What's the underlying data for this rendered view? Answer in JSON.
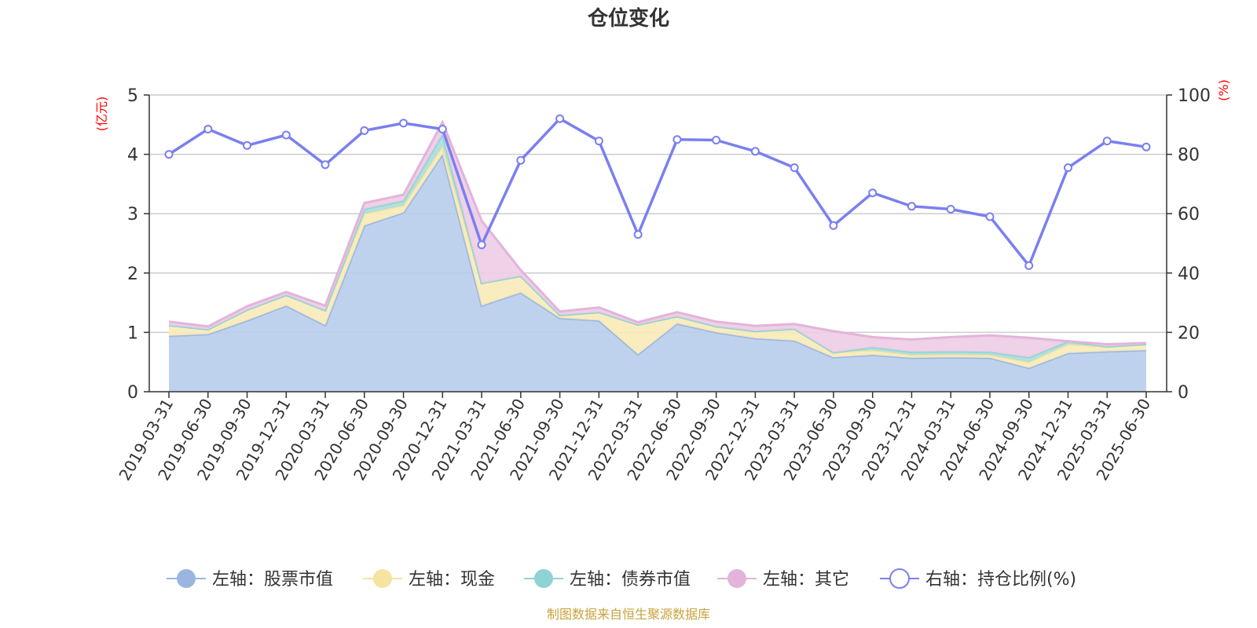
{
  "chart_data": {
    "type": "area",
    "title": "仓位变化",
    "left_axis_unit": "(亿元)",
    "right_axis_unit": "(%)",
    "left_ylim": [
      0,
      5
    ],
    "right_ylim": [
      0,
      100
    ],
    "left_yticks": [
      "0",
      "1",
      "2",
      "3",
      "4",
      "5"
    ],
    "right_yticks": [
      "0",
      "20",
      "40",
      "60",
      "80",
      "100"
    ],
    "grid": true,
    "legend_position": "bottom",
    "categories": [
      "2019-03-31",
      "2019-06-30",
      "2019-09-30",
      "2019-12-31",
      "2020-03-31",
      "2020-06-30",
      "2020-09-30",
      "2020-12-31",
      "2021-03-31",
      "2021-06-30",
      "2021-09-30",
      "2021-12-31",
      "2022-03-31",
      "2022-06-30",
      "2022-09-30",
      "2022-12-31",
      "2023-03-31",
      "2023-06-30",
      "2023-09-30",
      "2023-12-31",
      "2024-03-31",
      "2024-06-30",
      "2024-09-30",
      "2024-12-31",
      "2025-03-31",
      "2025-06-30"
    ],
    "series": [
      {
        "name": "左轴：股票市值",
        "axis": "left",
        "kind": "stacked-area",
        "color": "#9ab6e0",
        "fill": "#b8cdeb",
        "values": [
          0.94,
          0.97,
          1.2,
          1.45,
          1.12,
          2.8,
          3.02,
          4.0,
          1.45,
          1.67,
          1.24,
          1.2,
          0.63,
          1.15,
          1.0,
          0.9,
          0.86,
          0.58,
          0.62,
          0.57,
          0.58,
          0.57,
          0.4,
          0.65,
          0.68,
          0.7
        ]
      },
      {
        "name": "左轴：现金",
        "axis": "left",
        "kind": "stacked-area",
        "color": "#f5e3a0",
        "fill": "#f8ebb8",
        "values": [
          0.18,
          0.08,
          0.18,
          0.18,
          0.25,
          0.2,
          0.12,
          0.14,
          0.38,
          0.28,
          0.05,
          0.14,
          0.5,
          0.12,
          0.1,
          0.12,
          0.2,
          0.08,
          0.08,
          0.05,
          0.05,
          0.05,
          0.1,
          0.15,
          0.08,
          0.1
        ]
      },
      {
        "name": "左轴：债券市值",
        "axis": "left",
        "kind": "stacked-area",
        "color": "#8fd3d3",
        "fill": "#a9dede",
        "values": [
          0,
          0,
          0,
          0,
          0,
          0.08,
          0.08,
          0.2,
          0,
          0,
          0,
          0,
          0,
          0,
          0,
          0,
          0,
          0,
          0.05,
          0.05,
          0.05,
          0.05,
          0.08,
          0.05,
          0,
          0
        ]
      },
      {
        "name": "左轴：其它",
        "axis": "left",
        "kind": "stacked-area",
        "color": "#e3b4d9",
        "fill": "#edcce6",
        "values": [
          0.06,
          0.05,
          0.06,
          0.05,
          0.08,
          0.1,
          0.1,
          0.2,
          1.05,
          0.1,
          0.06,
          0.08,
          0.04,
          0.07,
          0.08,
          0.09,
          0.08,
          0.36,
          0.17,
          0.21,
          0.24,
          0.28,
          0.33,
          0,
          0.04,
          0.02
        ]
      },
      {
        "name": "右轴：持仓比例(%)",
        "axis": "right",
        "kind": "line",
        "color": "#7a7ff0",
        "values": [
          80,
          88.5,
          83,
          86.5,
          76.5,
          88,
          90.5,
          88.5,
          49.5,
          78,
          92,
          84.5,
          53,
          85,
          84.8,
          81,
          75.5,
          56,
          67,
          62.5,
          61.5,
          59,
          42.5,
          75.5,
          84.5,
          82.5
        ]
      }
    ]
  },
  "source_note": "制图数据来自恒生聚源数据库"
}
